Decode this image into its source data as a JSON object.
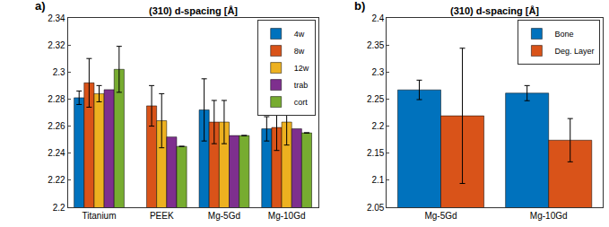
{
  "chart_data": [
    {
      "type": "bar",
      "label": "a)",
      "title": "(310) d-spacing [Å]",
      "categories": [
        "Titanium",
        "PEEK",
        "Mg-5Gd",
        "Mg-10Gd"
      ],
      "series": [
        {
          "name": "4w",
          "color": "#0072BD",
          "values": [
            2.281,
            null,
            2.272,
            2.258
          ],
          "errors": [
            0.005,
            null,
            0.023,
            0.009
          ]
        },
        {
          "name": "8w",
          "color": "#D95319",
          "values": [
            2.292,
            2.275,
            2.263,
            2.259
          ],
          "errors": [
            0.018,
            0.015,
            0.016,
            0.017
          ]
        },
        {
          "name": "12w",
          "color": "#EDB120",
          "values": [
            2.284,
            2.264,
            2.263,
            2.263
          ],
          "errors": [
            0.006,
            0.02,
            0.016,
            0.017
          ]
        },
        {
          "name": "trab",
          "color": "#7E2F8E",
          "values": [
            2.287,
            2.252,
            2.253,
            2.258
          ]
        },
        {
          "name": "cort",
          "color": "#77AC30",
          "values": [
            2.302,
            2.245,
            2.253,
            2.255
          ],
          "errors": [
            0.017,
            null,
            null,
            null
          ]
        }
      ],
      "ylim": [
        2.2,
        2.34
      ],
      "yticks": [
        2.2,
        2.22,
        2.24,
        2.26,
        2.28,
        2.3,
        2.32,
        2.34
      ],
      "legend": "upper right",
      "grid": false
    },
    {
      "type": "bar",
      "label": "b)",
      "title": "(310) d-spacing [Å]",
      "categories": [
        "Mg-5Gd",
        "Mg-10Gd"
      ],
      "series": [
        {
          "name": "Bone",
          "color": "#0072BD",
          "values": [
            2.267,
            2.261
          ],
          "errors": [
            0.018,
            0.014
          ]
        },
        {
          "name": "Deg. Layer",
          "color": "#D95319",
          "values": [
            2.219,
            2.174
          ],
          "errors": [
            0.125,
            0.04
          ]
        }
      ],
      "ylim": [
        2.05,
        2.4
      ],
      "yticks": [
        2.05,
        2.1,
        2.15,
        2.2,
        2.25,
        2.3,
        2.35,
        2.4
      ],
      "legend": "upper right",
      "grid": false
    }
  ]
}
